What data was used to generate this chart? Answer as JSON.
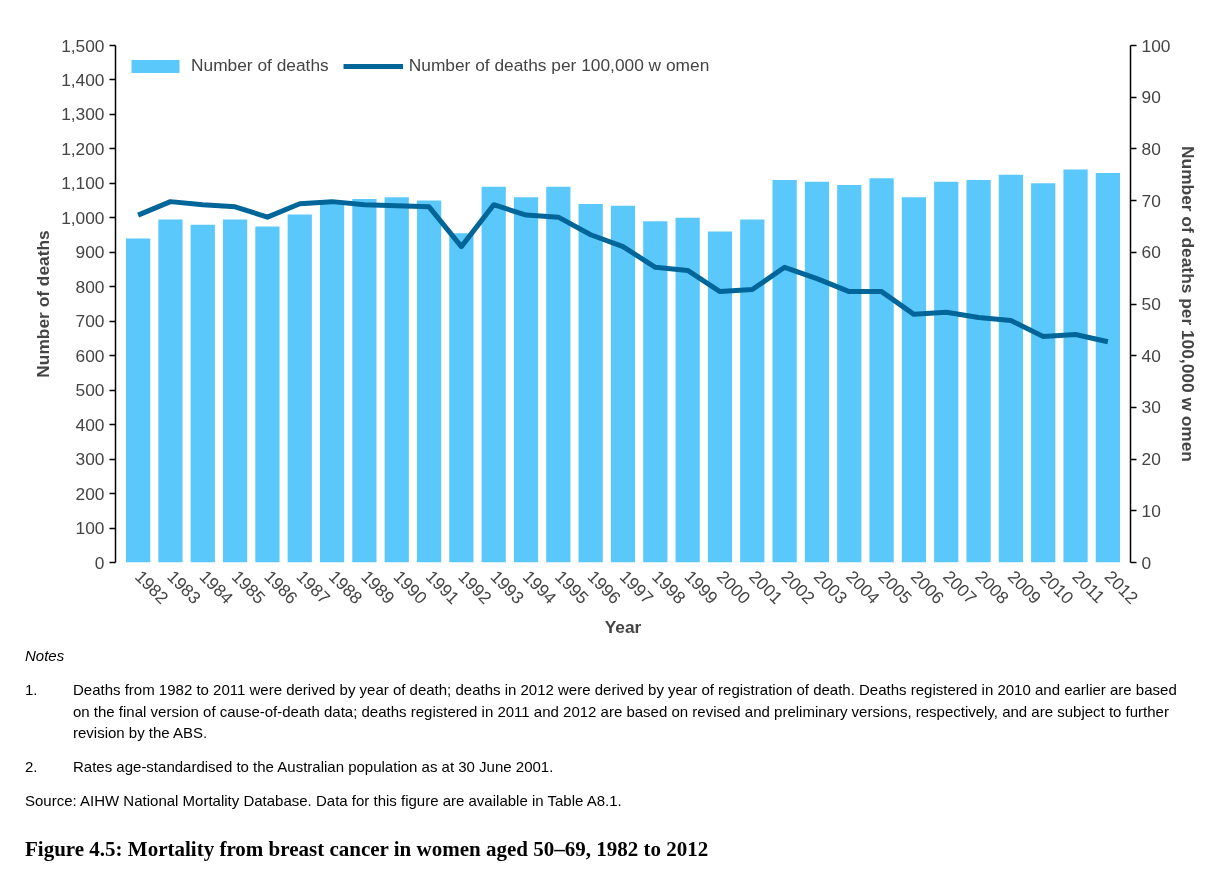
{
  "chart_data": {
    "type": "bar",
    "title": "Figure 4.5: Mortality from breast cancer in women aged 50–69, 1982 to 2012",
    "xlabel": "Year",
    "ylabel": "Number of deaths",
    "y2label": "Number of deaths per 100,000 w omen",
    "categories": [
      "1982",
      "1983",
      "1984",
      "1985",
      "1986",
      "1987",
      "1988",
      "1989",
      "1990",
      "1991",
      "1992",
      "1993",
      "1994",
      "1995",
      "1996",
      "1997",
      "1998",
      "1999",
      "2000",
      "2001",
      "2002",
      "2003",
      "2004",
      "2005",
      "2006",
      "2007",
      "2008",
      "2009",
      "2010",
      "2011",
      "2012"
    ],
    "series": [
      {
        "name": "Number of deaths",
        "color": "#5bc8fc",
        "values": [
          940,
          995,
          980,
          995,
          975,
          1010,
          1045,
          1055,
          1060,
          1050,
          955,
          1090,
          1060,
          1090,
          1040,
          1035,
          990,
          1000,
          960,
          995,
          1110,
          1105,
          1095,
          1115,
          1060,
          1105,
          1110,
          1125,
          1100,
          1140,
          1130
        ]
      },
      {
        "name": "Number of deaths per 100,000 w omen",
        "type": "line",
        "axis": "y2",
        "color": "#006699",
        "values": [
          67.2,
          69.8,
          69.2,
          68.8,
          66.8,
          69.4,
          69.8,
          69.2,
          69.0,
          68.8,
          61.1,
          69.2,
          67.2,
          66.8,
          63.4,
          61.1,
          57.1,
          56.5,
          52.4,
          52.8,
          57.1,
          54.9,
          52.4,
          52.4,
          48.0,
          48.4,
          47.4,
          46.8,
          43.7,
          44.1,
          42.7
        ]
      }
    ],
    "ylim": [
      0,
      1500
    ],
    "yticks": [
      0,
      100,
      200,
      300,
      400,
      500,
      600,
      700,
      800,
      900,
      {
        "value": 1000,
        "label": "1,000"
      },
      {
        "value": 1100,
        "label": "1,100"
      },
      {
        "value": 1200,
        "label": "1,200"
      },
      {
        "value": 1300,
        "label": "1,300"
      },
      {
        "value": 1400,
        "label": "1,400"
      },
      {
        "value": 1500,
        "label": "1,500"
      }
    ],
    "y2lim": [
      0,
      100
    ],
    "y2ticks": [
      0,
      10,
      20,
      30,
      40,
      50,
      60,
      70,
      80,
      90,
      100
    ],
    "grid": false,
    "legend": "top left",
    "line_style": "solid",
    "marker": "none",
    "annotations": [
      "Notes",
      "1.\tDeaths from 1982 to 2011 were derived by year of death; deaths in 2012 were derived by year of registration of death. Deaths registered in 2010 and earlier are based on the final version of cause-of-death data; deaths registered in 2011 and 2012 are based on revised and preliminary versions, respectively, and are subject to further revision by the ABS.",
      "2.\tRates age-standardised to the Australian population as at 30 June 2001.",
      "Source: AIHW National Mortality Database. Data for this figure are available in Table A8.1."
    ]
  }
}
